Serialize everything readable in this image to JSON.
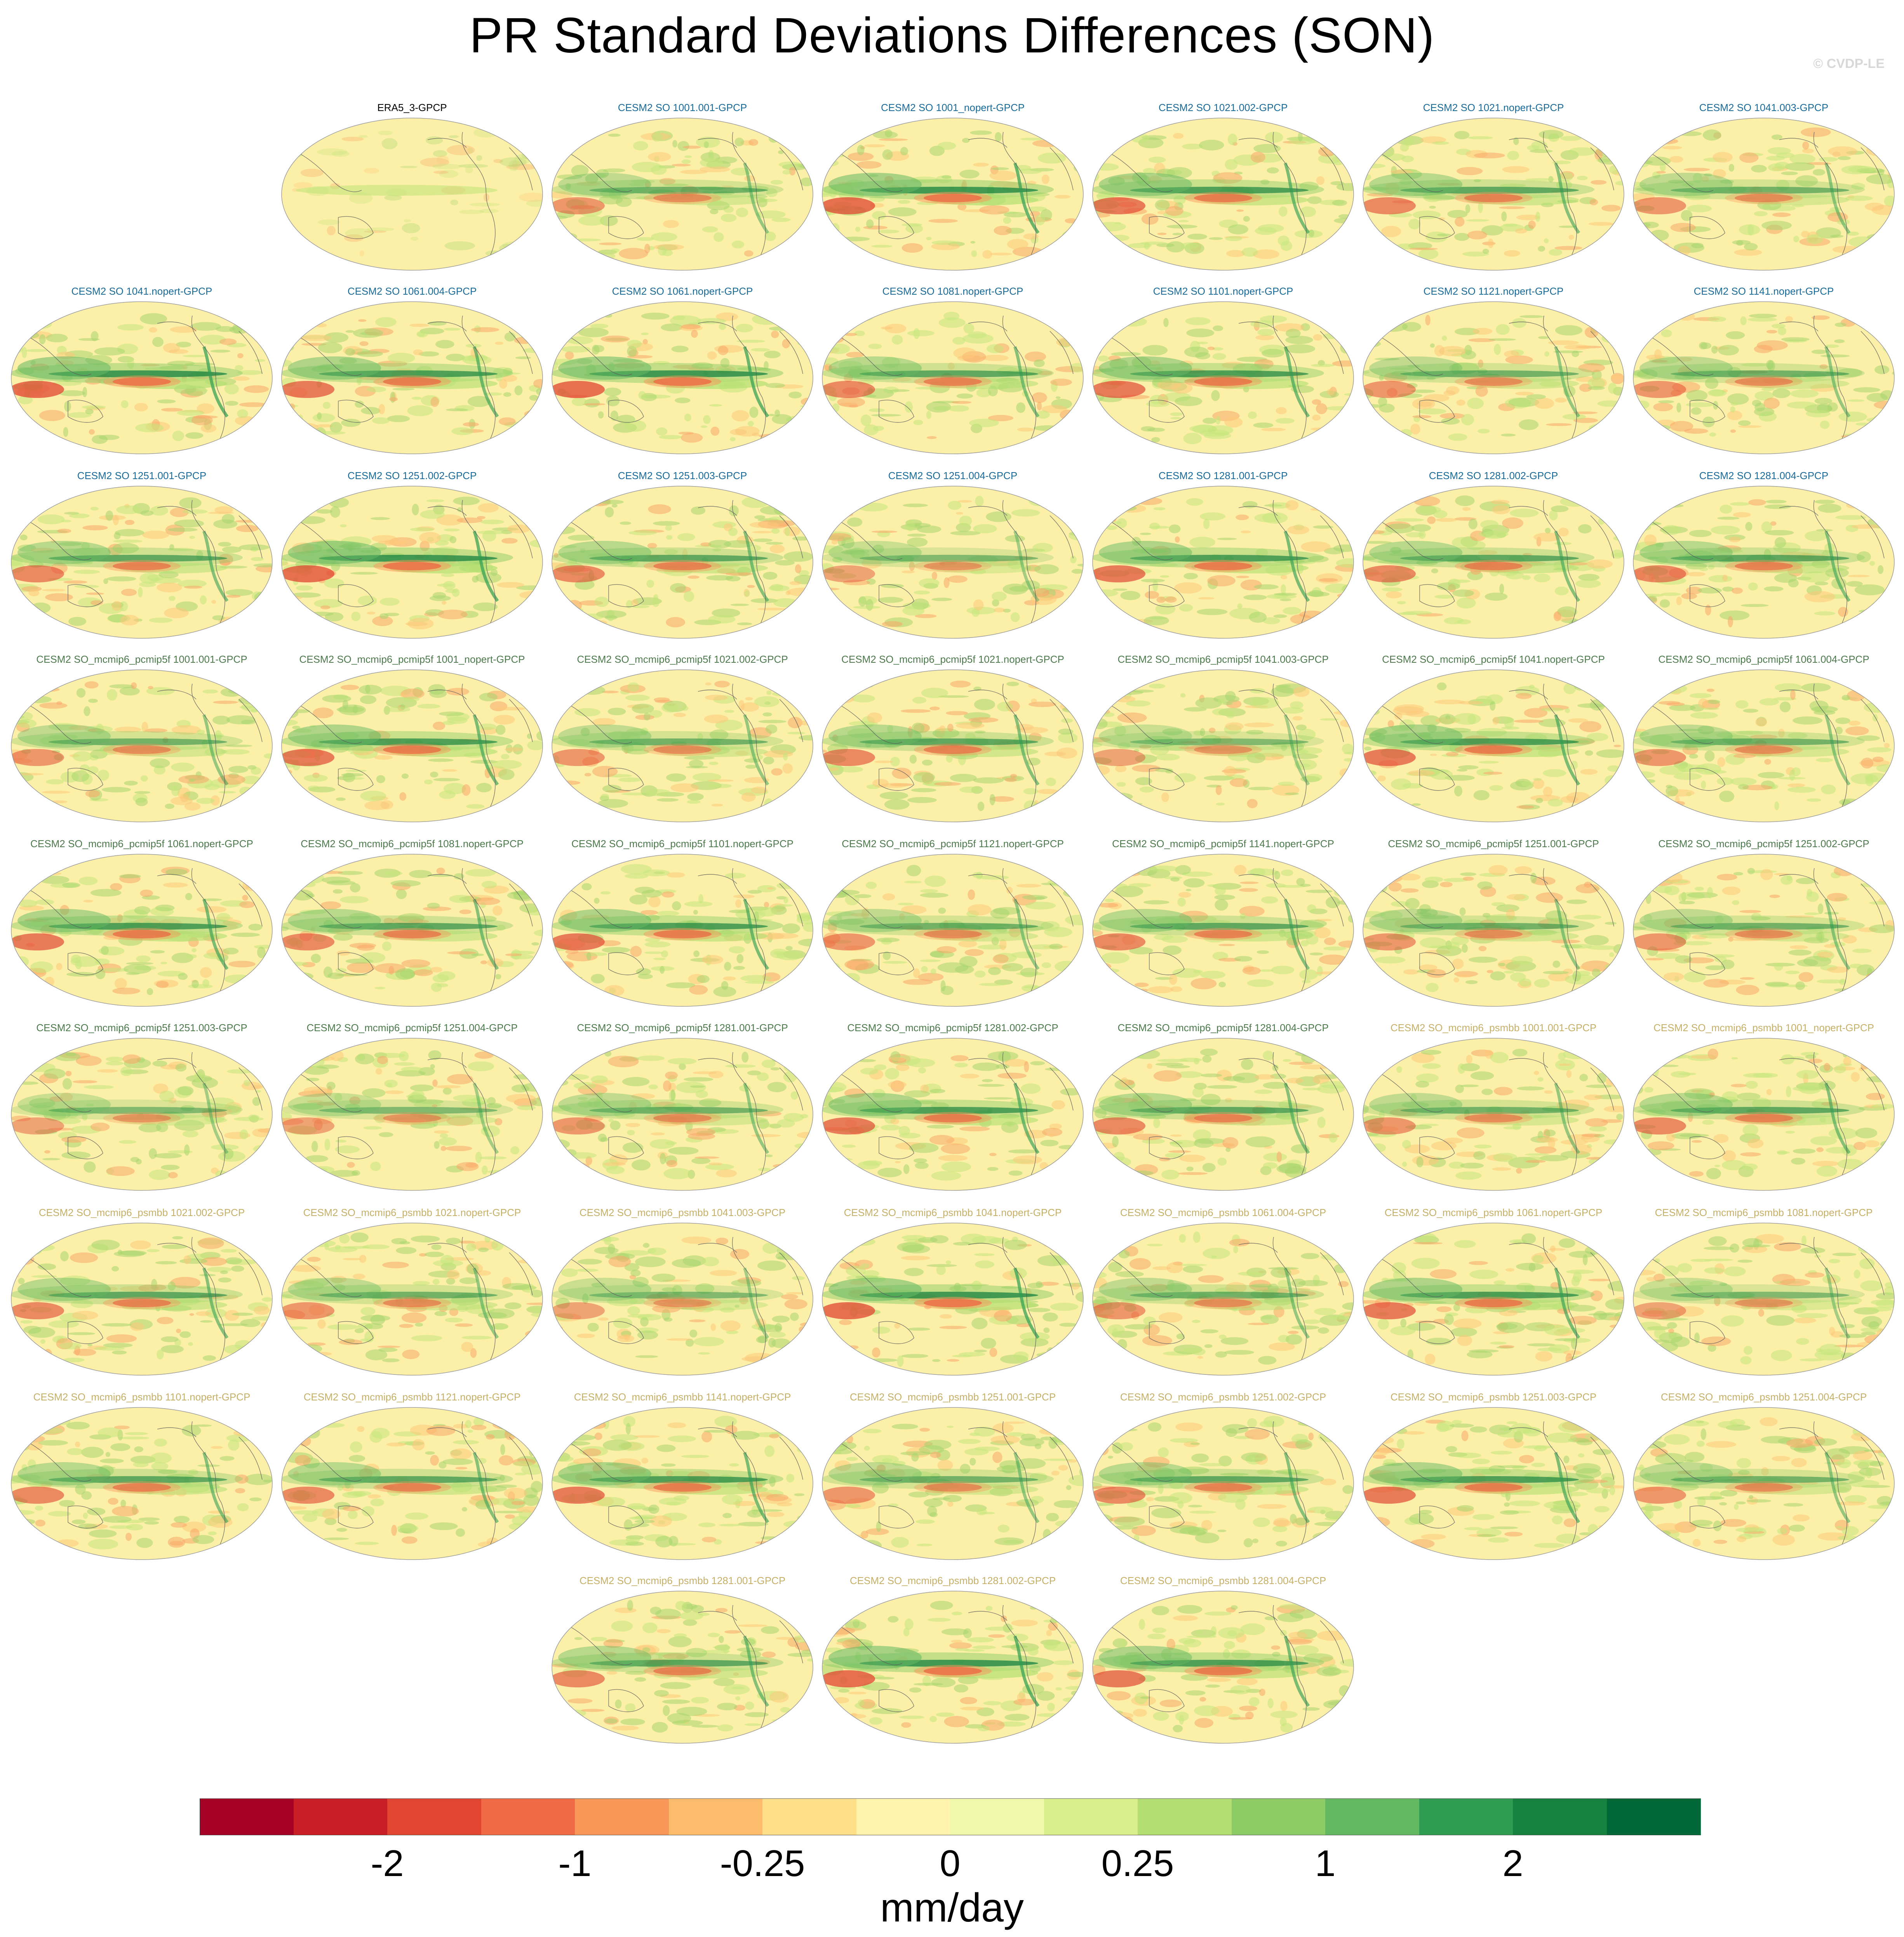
{
  "title": "PR Standard Deviations Differences (SON)",
  "credit": "© CVDP-LE",
  "colorbar": {
    "unit": "mm/day",
    "colors": [
      "#a50026",
      "#c81f27",
      "#e04632",
      "#f06b45",
      "#f99759",
      "#fcbc6c",
      "#fee08b",
      "#fff3ad",
      "#f0f8ab",
      "#d9ef8b",
      "#b3df72",
      "#8ccb66",
      "#64b862",
      "#2f9c52",
      "#17823f",
      "#006837"
    ],
    "tick_labels": [
      "-2",
      "-1",
      "-0.25",
      "0",
      "0.25",
      "1",
      "2"
    ]
  },
  "panels": [
    {
      "label": "ERA5_3-GPCP",
      "group": "obs",
      "intensity": 0.3
    },
    {
      "label": "CESM2 SO 1001.001-GPCP",
      "group": "g1",
      "intensity": 0.7
    },
    {
      "label": "CESM2 SO 1001_nopert-GPCP",
      "group": "g1",
      "intensity": 1.0
    },
    {
      "label": "CESM2 SO 1021.002-GPCP",
      "group": "g1",
      "intensity": 0.9
    },
    {
      "label": "CESM2 SO 1021.nopert-GPCP",
      "group": "g1",
      "intensity": 0.8
    },
    {
      "label": "CESM2 SO 1041.003-GPCP",
      "group": "g1",
      "intensity": 0.7
    },
    {
      "label": "CESM2 SO 1041.nopert-GPCP",
      "group": "g1",
      "intensity": 1.0
    },
    {
      "label": "CESM2 SO 1061.004-GPCP",
      "group": "g1",
      "intensity": 0.9
    },
    {
      "label": "CESM2 SO 1061.nopert-GPCP",
      "group": "g1",
      "intensity": 1.0
    },
    {
      "label": "CESM2 SO 1081.nopert-GPCP",
      "group": "g1",
      "intensity": 0.8
    },
    {
      "label": "CESM2 SO 1101.nopert-GPCP",
      "group": "g1",
      "intensity": 0.9
    },
    {
      "label": "CESM2 SO 1121.nopert-GPCP",
      "group": "g1",
      "intensity": 0.7
    },
    {
      "label": "CESM2 SO 1141.nopert-GPCP",
      "group": "g1",
      "intensity": 0.7
    },
    {
      "label": "CESM2 SO 1251.001-GPCP",
      "group": "g1",
      "intensity": 0.8
    },
    {
      "label": "CESM2 SO 1251.002-GPCP",
      "group": "g1",
      "intensity": 1.0
    },
    {
      "label": "CESM2 SO 1251.003-GPCP",
      "group": "g1",
      "intensity": 0.8
    },
    {
      "label": "CESM2 SO 1251.004-GPCP",
      "group": "g1",
      "intensity": 0.6
    },
    {
      "label": "CESM2 SO 1281.001-GPCP",
      "group": "g1",
      "intensity": 0.9
    },
    {
      "label": "CESM2 SO 1281.002-GPCP",
      "group": "g1",
      "intensity": 0.8
    },
    {
      "label": "CESM2 SO 1281.004-GPCP",
      "group": "g1",
      "intensity": 0.8
    },
    {
      "label": "CESM2 SO_mcmip6_pcmip5f 1001.001-GPCP",
      "group": "g2",
      "intensity": 0.7
    },
    {
      "label": "CESM2 SO_mcmip6_pcmip5f 1001_nopert-GPCP",
      "group": "g2",
      "intensity": 0.9
    },
    {
      "label": "CESM2 SO_mcmip6_pcmip5f 1021.002-GPCP",
      "group": "g2",
      "intensity": 0.7
    },
    {
      "label": "CESM2 SO_mcmip6_pcmip5f 1021.nopert-GPCP",
      "group": "g2",
      "intensity": 0.8
    },
    {
      "label": "CESM2 SO_mcmip6_pcmip5f 1041.003-GPCP",
      "group": "g2",
      "intensity": 0.6
    },
    {
      "label": "CESM2 SO_mcmip6_pcmip5f 1041.nopert-GPCP",
      "group": "g2",
      "intensity": 0.9
    },
    {
      "label": "CESM2 SO_mcmip6_pcmip5f 1061.004-GPCP",
      "group": "g2",
      "intensity": 0.7
    },
    {
      "label": "CESM2 SO_mcmip6_pcmip5f 1061.nopert-GPCP",
      "group": "g2",
      "intensity": 0.9
    },
    {
      "label": "CESM2 SO_mcmip6_pcmip5f 1081.nopert-GPCP",
      "group": "g2",
      "intensity": 0.8
    },
    {
      "label": "CESM2 SO_mcmip6_pcmip5f 1101.nopert-GPCP",
      "group": "g2",
      "intensity": 0.9
    },
    {
      "label": "CESM2 SO_mcmip6_pcmip5f 1121.nopert-GPCP",
      "group": "g2",
      "intensity": 0.7
    },
    {
      "label": "CESM2 SO_mcmip6_pcmip5f 1141.nopert-GPCP",
      "group": "g2",
      "intensity": 0.8
    },
    {
      "label": "CESM2 SO_mcmip6_pcmip5f 1251.001-GPCP",
      "group": "g2",
      "intensity": 0.7
    },
    {
      "label": "CESM2 SO_mcmip6_pcmip5f 1251.002-GPCP",
      "group": "g2",
      "intensity": 0.7
    },
    {
      "label": "CESM2 SO_mcmip6_pcmip5f 1251.003-GPCP",
      "group": "g2",
      "intensity": 0.6
    },
    {
      "label": "CESM2 SO_mcmip6_pcmip5f 1251.004-GPCP",
      "group": "g2",
      "intensity": 0.6
    },
    {
      "label": "CESM2 SO_mcmip6_pcmip5f 1281.001-GPCP",
      "group": "g2",
      "intensity": 0.7
    },
    {
      "label": "CESM2 SO_mcmip6_pcmip5f 1281.002-GPCP",
      "group": "g2",
      "intensity": 0.9
    },
    {
      "label": "CESM2 SO_mcmip6_pcmip5f 1281.004-GPCP",
      "group": "g2",
      "intensity": 0.8
    },
    {
      "label": "CESM2 SO_mcmip6_psmbb 1001.001-GPCP",
      "group": "g3",
      "intensity": 0.7
    },
    {
      "label": "CESM2 SO_mcmip6_psmbb 1001_nopert-GPCP",
      "group": "g3",
      "intensity": 0.8
    },
    {
      "label": "CESM2 SO_mcmip6_psmbb 1021.002-GPCP",
      "group": "g3",
      "intensity": 0.8
    },
    {
      "label": "CESM2 SO_mcmip6_psmbb 1021.nopert-GPCP",
      "group": "g3",
      "intensity": 0.7
    },
    {
      "label": "CESM2 SO_mcmip6_psmbb 1041.003-GPCP",
      "group": "g3",
      "intensity": 0.6
    },
    {
      "label": "CESM2 SO_mcmip6_psmbb 1041.nopert-GPCP",
      "group": "g3",
      "intensity": 1.0
    },
    {
      "label": "CESM2 SO_mcmip6_psmbb 1061.004-GPCP",
      "group": "g3",
      "intensity": 0.7
    },
    {
      "label": "CESM2 SO_mcmip6_psmbb 1061.nopert-GPCP",
      "group": "g3",
      "intensity": 0.9
    },
    {
      "label": "CESM2 SO_mcmip6_psmbb 1081.nopert-GPCP",
      "group": "g3",
      "intensity": 0.6
    },
    {
      "label": "CESM2 SO_mcmip6_psmbb 1101.nopert-GPCP",
      "group": "g3",
      "intensity": 0.8
    },
    {
      "label": "CESM2 SO_mcmip6_psmbb 1121.nopert-GPCP",
      "group": "g3",
      "intensity": 0.8
    },
    {
      "label": "CESM2 SO_mcmip6_psmbb 1141.nopert-GPCP",
      "group": "g3",
      "intensity": 0.9
    },
    {
      "label": "CESM2 SO_mcmip6_psmbb 1251.001-GPCP",
      "group": "g3",
      "intensity": 0.7
    },
    {
      "label": "CESM2 SO_mcmip6_psmbb 1251.002-GPCP",
      "group": "g3",
      "intensity": 0.8
    },
    {
      "label": "CESM2 SO_mcmip6_psmbb 1251.003-GPCP",
      "group": "g3",
      "intensity": 0.9
    },
    {
      "label": "CESM2 SO_mcmip6_psmbb 1251.004-GPCP",
      "group": "g3",
      "intensity": 0.7
    },
    {
      "label": "CESM2 SO_mcmip6_psmbb 1281.001-GPCP",
      "group": "g3",
      "intensity": 0.8
    },
    {
      "label": "CESM2 SO_mcmip6_psmbb 1281.002-GPCP",
      "group": "g3",
      "intensity": 1.0
    },
    {
      "label": "CESM2 SO_mcmip6_psmbb 1281.004-GPCP",
      "group": "g3",
      "intensity": 0.9
    }
  ]
}
